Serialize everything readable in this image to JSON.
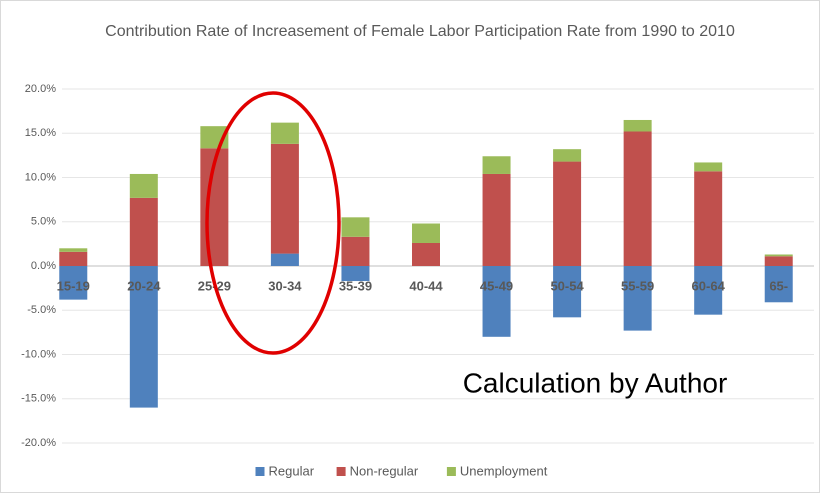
{
  "chart_data": {
    "type": "stacked_bar",
    "title": "Contribution Rate of Increasement of Female Labor Participation Rate from 1990 to 2010",
    "categories": [
      "15-19",
      "20-24",
      "25-29",
      "30-34",
      "35-39",
      "40-44",
      "45-49",
      "50-54",
      "55-59",
      "60-64",
      "65-"
    ],
    "series": [
      {
        "name": "Regular",
        "color": "#4f81bd",
        "values": [
          -3.8,
          -16.0,
          0,
          1.4,
          -1.7,
          0,
          -8.0,
          -5.8,
          -7.3,
          -5.5,
          -4.1
        ]
      },
      {
        "name": "Non-regular",
        "color": "#c0504d",
        "values": [
          1.6,
          7.7,
          13.3,
          12.4,
          3.3,
          2.6,
          10.4,
          11.8,
          15.2,
          10.7,
          1.1
        ]
      },
      {
        "name": "Unemployment",
        "color": "#9bbb59",
        "values": [
          0.4,
          2.7,
          2.5,
          2.4,
          2.2,
          2.2,
          2.0,
          1.4,
          1.3,
          1.0,
          0.2
        ]
      }
    ],
    "ylim": [
      -20,
      20
    ],
    "yticks": [
      {
        "value": -20,
        "label": "-20.0%"
      },
      {
        "value": -15,
        "label": "-15.0%"
      },
      {
        "value": -10,
        "label": "-10.0%"
      },
      {
        "value": -5,
        "label": "-5.0%"
      },
      {
        "value": 0,
        "label": "0.0%"
      },
      {
        "value": 5,
        "label": "5.0%"
      },
      {
        "value": 10,
        "label": "10.0%"
      },
      {
        "value": 15,
        "label": "15.0%"
      },
      {
        "value": 20,
        "label": "20.0%"
      }
    ],
    "grid": true,
    "legend": "bottom",
    "annotations": [
      "Calculation by Author"
    ]
  }
}
